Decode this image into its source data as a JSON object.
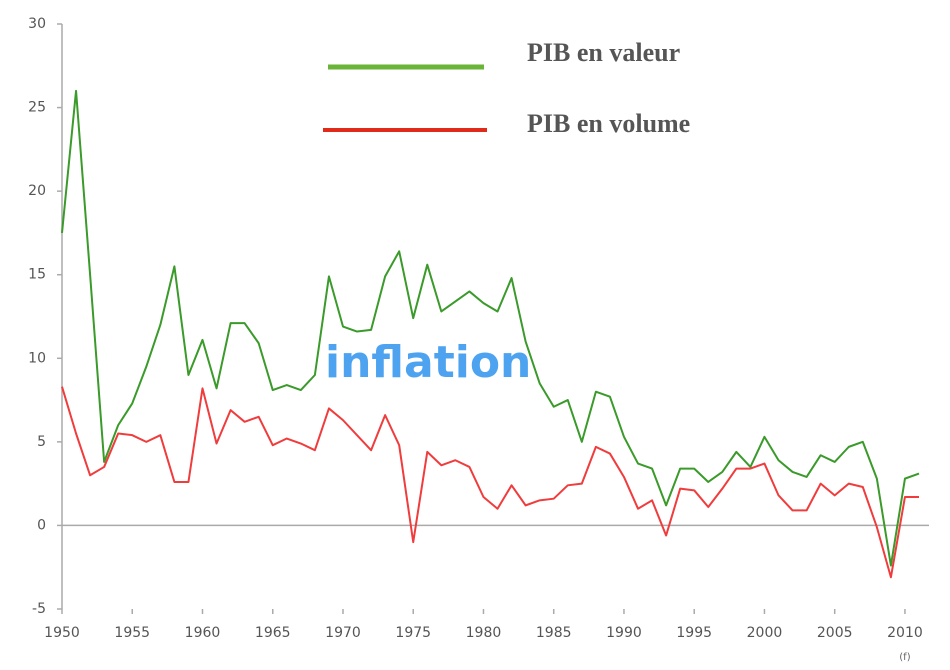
{
  "chart_data": {
    "type": "line",
    "x": [
      1950,
      1951,
      1952,
      1953,
      1954,
      1955,
      1956,
      1957,
      1958,
      1959,
      1960,
      1961,
      1962,
      1963,
      1964,
      1965,
      1966,
      1967,
      1968,
      1969,
      1970,
      1971,
      1972,
      1973,
      1974,
      1975,
      1976,
      1977,
      1978,
      1979,
      1980,
      1981,
      1982,
      1983,
      1984,
      1985,
      1986,
      1987,
      1988,
      1989,
      1990,
      1991,
      1992,
      1993,
      1994,
      1995,
      1996,
      1997,
      1998,
      1999,
      2000,
      2001,
      2002,
      2003,
      2004,
      2005,
      2006,
      2007,
      2008,
      2009,
      2010,
      2011
    ],
    "series": [
      {
        "name": "PIB en valeur",
        "color": "#3a9a2a",
        "legend_color": "#6ab437",
        "values": [
          17.5,
          26,
          15,
          3.8,
          6,
          7.3,
          9.5,
          12,
          15.5,
          9,
          11.1,
          8.2,
          12.1,
          12.1,
          10.9,
          8.1,
          8.4,
          8.1,
          9,
          14.9,
          11.9,
          11.6,
          11.7,
          14.9,
          16.4,
          12.4,
          15.6,
          12.8,
          13.4,
          14,
          13.3,
          12.8,
          14.8,
          11,
          8.5,
          7.1,
          7.5,
          5,
          8,
          7.7,
          5.3,
          3.7,
          3.4,
          1.2,
          3.4,
          3.4,
          2.6,
          3.2,
          4.4,
          3.5,
          5.3,
          3.9,
          3.2,
          2.9,
          4.2,
          3.8,
          4.7,
          5,
          2.8,
          -2.4,
          2.8,
          3.1
        ]
      },
      {
        "name": "PIB en volume",
        "color": "#f03c3c",
        "legend_color": "#e02a1a",
        "values": [
          8.3,
          5.5,
          3,
          3.5,
          5.5,
          5.4,
          5,
          5.4,
          2.6,
          2.6,
          8.2,
          4.9,
          6.9,
          6.2,
          6.5,
          4.8,
          5.2,
          4.9,
          4.5,
          7,
          6.3,
          5.4,
          4.5,
          6.6,
          4.8,
          -1,
          4.4,
          3.6,
          3.9,
          3.5,
          1.7,
          1,
          2.4,
          1.2,
          1.5,
          1.6,
          2.4,
          2.5,
          4.7,
          4.3,
          2.9,
          1,
          1.5,
          -0.6,
          2.2,
          2.1,
          1.1,
          2.2,
          3.4,
          3.4,
          3.7,
          1.8,
          0.9,
          0.9,
          2.5,
          1.8,
          2.5,
          2.3,
          -0.1,
          -3.1,
          1.7,
          1.7
        ]
      }
    ],
    "xlim": [
      1950,
      2011
    ],
    "xticks": [
      1950,
      1955,
      1960,
      1965,
      1970,
      1975,
      1980,
      1985,
      1990,
      1995,
      2000,
      2005,
      2010
    ],
    "ylim": [
      -5,
      30
    ],
    "yticks": [
      -5,
      0,
      5,
      10,
      15,
      20,
      25,
      30
    ],
    "annotations": [
      "inflation",
      "(f)"
    ]
  }
}
